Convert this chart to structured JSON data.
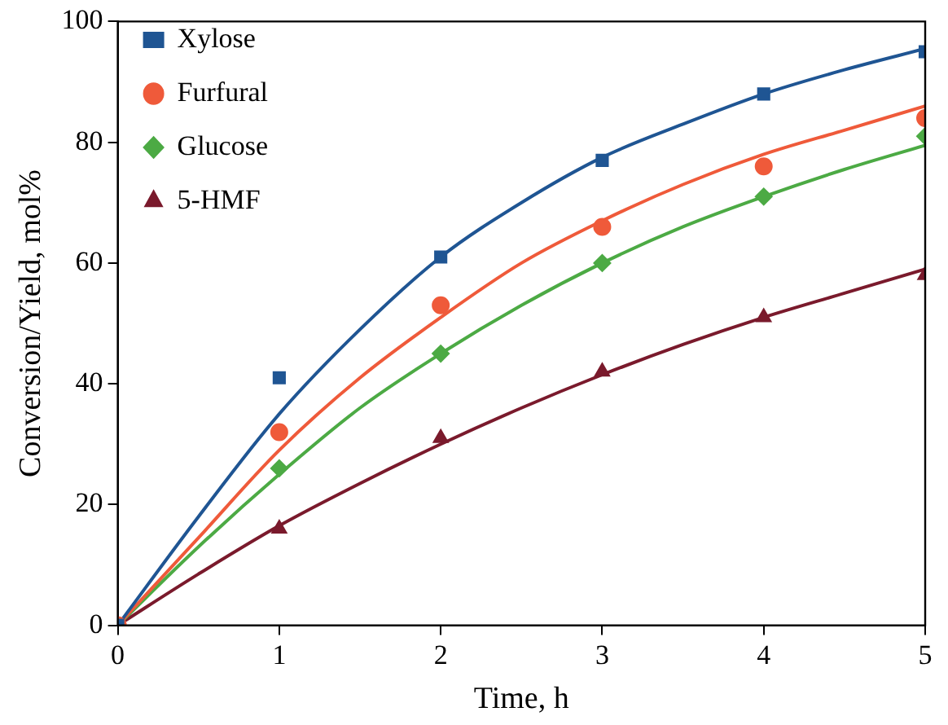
{
  "chart_data": {
    "type": "scatter",
    "xlabel": "Time, h",
    "ylabel": "Conversion/Yield, mol%",
    "xlim": [
      0,
      5
    ],
    "ylim": [
      0,
      100
    ],
    "xticks": [
      0,
      1,
      2,
      3,
      4,
      5
    ],
    "yticks": [
      0,
      20,
      40,
      60,
      80,
      100
    ],
    "grid": false,
    "legend": "top left",
    "series": [
      {
        "name": "Xylose",
        "color": "#1f5593",
        "marker": "square",
        "x": [
          0,
          1,
          2,
          3,
          4,
          5
        ],
        "values": [
          0,
          41,
          61,
          77,
          88,
          95
        ]
      },
      {
        "name": "Furfural",
        "color": "#ef5a3a",
        "marker": "circle",
        "x": [
          0,
          1,
          2,
          3,
          4,
          5
        ],
        "values": [
          0,
          32,
          53,
          66,
          76,
          84
        ]
      },
      {
        "name": "Glucose",
        "color": "#4caa44",
        "marker": "diamond",
        "x": [
          1,
          2,
          3,
          4,
          5
        ],
        "values": [
          26,
          45,
          60,
          71,
          81
        ]
      },
      {
        "name": "5-HMF",
        "color": "#7a1a2c",
        "marker": "triangle",
        "x": [
          1,
          2,
          3,
          4,
          5
        ],
        "values": [
          16,
          31,
          42,
          51,
          58
        ]
      },
      {
        "type": "line",
        "color": "#1f5593",
        "marker": "none",
        "x": [
          0,
          0.5,
          1,
          1.5,
          2,
          2.5,
          3,
          3.5,
          4,
          4.5,
          5
        ],
        "values": [
          0,
          18,
          35,
          49,
          61,
          70,
          77.5,
          83,
          88,
          92,
          95.5
        ]
      },
      {
        "type": "line",
        "color": "#ef5a3a",
        "marker": "none",
        "x": [
          0,
          0.5,
          1,
          1.5,
          2,
          2.5,
          3,
          3.5,
          4,
          4.5,
          5
        ],
        "values": [
          0,
          14.5,
          29,
          41,
          51,
          60,
          67,
          73,
          78,
          82,
          86
        ]
      },
      {
        "type": "line",
        "color": "#4caa44",
        "marker": "none",
        "x": [
          0,
          0.5,
          1,
          1.5,
          2,
          2.5,
          3,
          3.5,
          4,
          4.5,
          5
        ],
        "values": [
          0,
          13,
          25,
          36,
          45,
          53,
          60,
          66,
          71,
          75.5,
          79.5
        ]
      },
      {
        "type": "line",
        "color": "#7a1a2c",
        "marker": "none",
        "x": [
          0,
          0.5,
          1,
          1.5,
          2,
          2.5,
          3,
          3.5,
          4,
          4.5,
          5
        ],
        "values": [
          0,
          8.5,
          16.5,
          23.5,
          30,
          36,
          41.5,
          46.5,
          51,
          55,
          59
        ]
      }
    ]
  }
}
